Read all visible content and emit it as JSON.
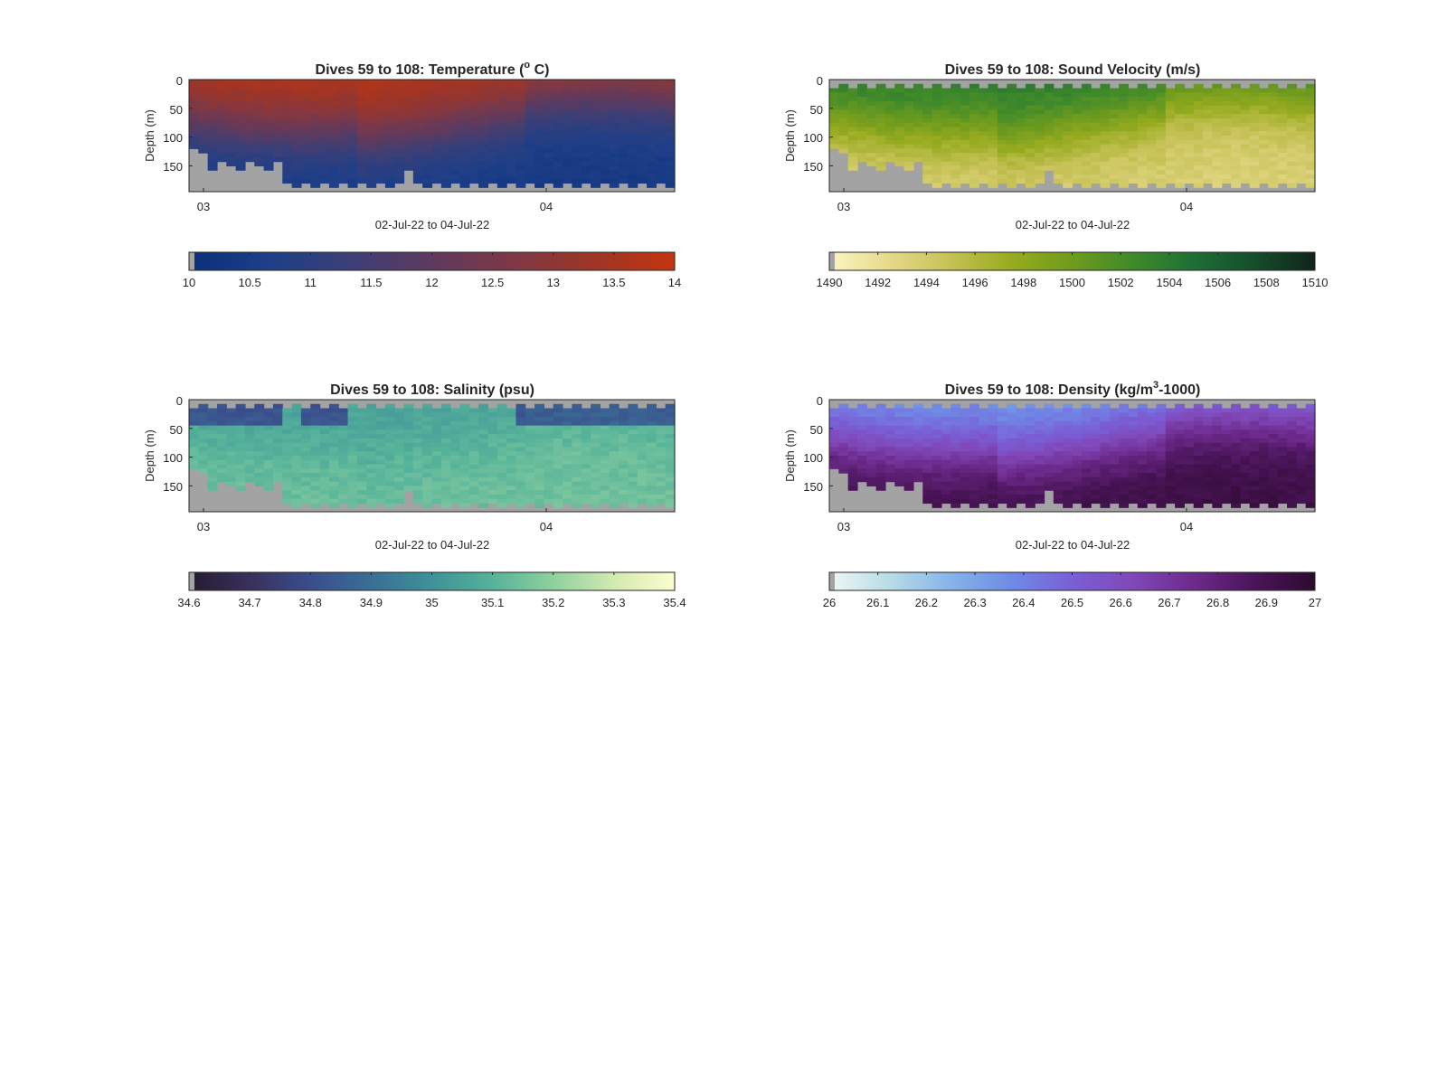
{
  "chart_data": [
    {
      "type": "heatmap",
      "title": "Dives 59 to 108: Temperature (",
      "title_sup": "o",
      "title_post": " C)",
      "xlabel": "02-Jul-22 to 04-Jul-22",
      "ylabel": "Depth (m)",
      "x_ticks": [
        "03",
        "04"
      ],
      "y_ticks": [
        "0",
        "50",
        "100",
        "150"
      ],
      "ylim": [
        0,
        195
      ],
      "colormap": [
        "#0b2f7a",
        "#1e3f88",
        "#3c3f76",
        "#5e3a5e",
        "#7e3846",
        "#9e3526",
        "#c33510"
      ],
      "clim": [
        10,
        14
      ],
      "colorbar_ticks": [
        "10",
        "10.5",
        "11",
        "11.5",
        "12",
        "12.5",
        "13",
        "13.5",
        "14"
      ]
    },
    {
      "type": "heatmap",
      "title": "Dives 59 to 108: Sound Velocity (m/s)",
      "xlabel": "02-Jul-22 to 04-Jul-22",
      "ylabel": "Depth (m)",
      "x_ticks": [
        "03",
        "04"
      ],
      "y_ticks": [
        "0",
        "50",
        "100",
        "150"
      ],
      "ylim": [
        0,
        195
      ],
      "colormap": [
        "#fbf6c2",
        "#e5d98a",
        "#c5c155",
        "#97ab1f",
        "#6e9b1e",
        "#3f8a2a",
        "#1e6f36",
        "#154e2a",
        "#10241b"
      ],
      "clim": [
        1490,
        1510
      ],
      "colorbar_ticks": [
        "1490",
        "1492",
        "1494",
        "1496",
        "1498",
        "1500",
        "1502",
        "1504",
        "1506",
        "1508",
        "1510"
      ]
    },
    {
      "type": "heatmap",
      "title": "Dives 59 to 108: Salinity (psu)",
      "xlabel": "02-Jul-22 to 04-Jul-22",
      "ylabel": "Depth (m)",
      "x_ticks": [
        "03",
        "04"
      ],
      "y_ticks": [
        "0",
        "50",
        "100",
        "150"
      ],
      "ylim": [
        0,
        195
      ],
      "colormap": [
        "#241c2f",
        "#39305c",
        "#3b4d8c",
        "#3a6f95",
        "#3e9198",
        "#56b39a",
        "#8fd09f",
        "#d3e9b2",
        "#fdfdcf"
      ],
      "clim": [
        34.6,
        35.4
      ],
      "colorbar_ticks": [
        "34.6",
        "34.7",
        "34.8",
        "34.9",
        "35",
        "35.1",
        "35.2",
        "35.3",
        "35.4"
      ]
    },
    {
      "type": "heatmap",
      "title": "Dives 59 to 108: Density (kg/m",
      "title_sup": "3",
      "title_post": "-1000)",
      "xlabel": "02-Jul-22 to 04-Jul-22",
      "ylabel": "Depth (m)",
      "x_ticks": [
        "03",
        "04"
      ],
      "y_ticks": [
        "0",
        "50",
        "100",
        "150"
      ],
      "ylim": [
        0,
        195
      ],
      "colormap": [
        "#eff7f6",
        "#b8dbe6",
        "#86b4ea",
        "#6f8ae6",
        "#7a5fd6",
        "#8048b8",
        "#6d2a8c",
        "#4a1559",
        "#2d0a2e"
      ],
      "clim": [
        26,
        27
      ],
      "colorbar_ticks": [
        "26",
        "26.1",
        "26.2",
        "26.3",
        "26.4",
        "26.5",
        "26.6",
        "26.7",
        "26.8",
        "26.9",
        "27"
      ]
    }
  ]
}
